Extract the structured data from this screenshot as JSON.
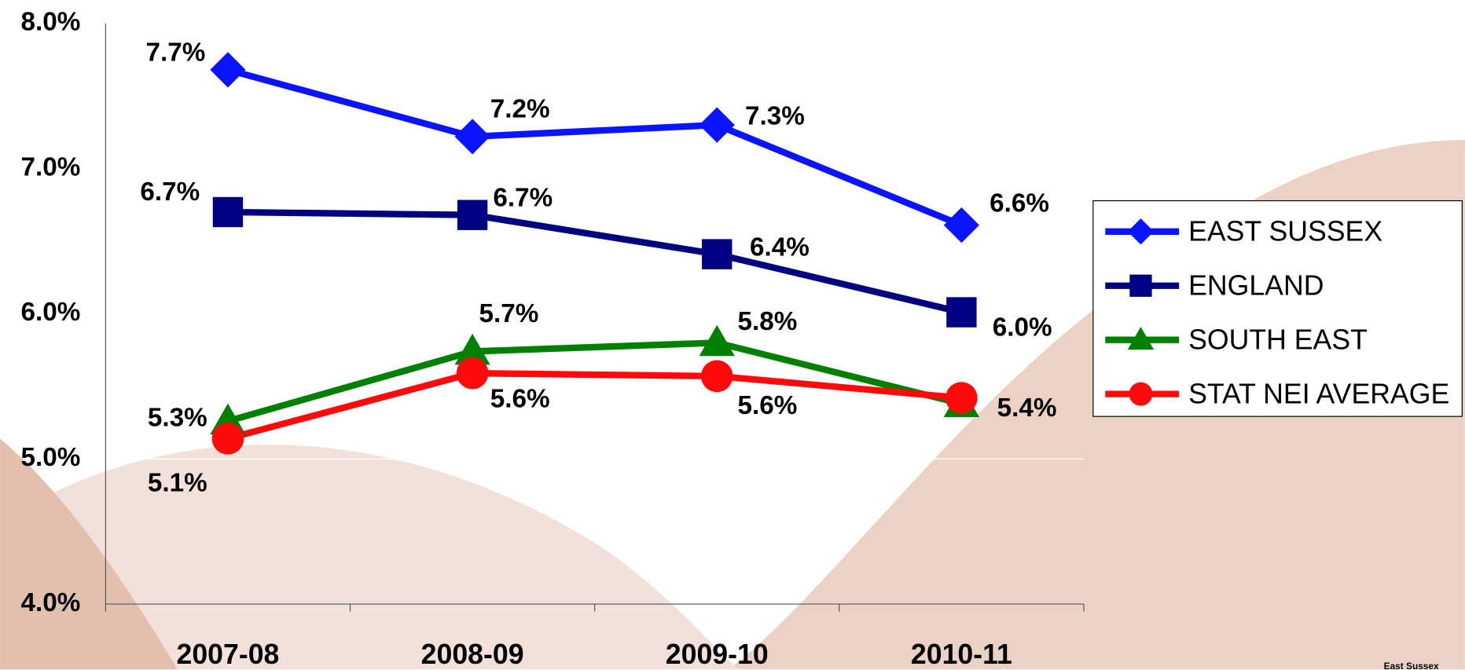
{
  "chart_data": {
    "type": "line",
    "categories": [
      "2007-08",
      "2008-09",
      "2009-10",
      "2010-11"
    ],
    "series": [
      {
        "name": "EAST SUSSEX",
        "color": "#0a14ff",
        "marker": "diamond",
        "values": [
          7.68,
          7.22,
          7.3,
          6.61
        ],
        "value_labels": [
          "7.7%",
          "7.2%",
          "7.3%",
          "6.6%"
        ]
      },
      {
        "name": "ENGLAND",
        "color": "#000080",
        "marker": "square",
        "values": [
          6.7,
          6.68,
          6.41,
          6.01
        ],
        "value_labels": [
          "6.7%",
          "6.7%",
          "6.4%",
          "6.0%"
        ]
      },
      {
        "name": "SOUTH EAST",
        "color": "#008000",
        "marker": "triangle",
        "values": [
          5.26,
          5.74,
          5.8,
          5.38
        ],
        "value_labels": [
          "5.3%",
          "5.7%",
          "5.8%",
          "5.4%"
        ]
      },
      {
        "name": "STAT NEI AVERAGE",
        "color": "#ff0a0a",
        "marker": "circle",
        "values": [
          5.14,
          5.59,
          5.57,
          5.42
        ],
        "value_labels": [
          "5.1%",
          "5.6%",
          "5.6%",
          null
        ]
      }
    ],
    "ylim": [
      4,
      8
    ],
    "yticks": [
      {
        "value": 4,
        "label": "4.0%"
      },
      {
        "value": 5,
        "label": "5.0%"
      },
      {
        "value": 6,
        "label": "6.0%"
      },
      {
        "value": 7,
        "label": "7.0%"
      },
      {
        "value": 8,
        "label": "8.0%"
      }
    ],
    "grid": true,
    "legend": "right",
    "footer": "East Sussex"
  }
}
